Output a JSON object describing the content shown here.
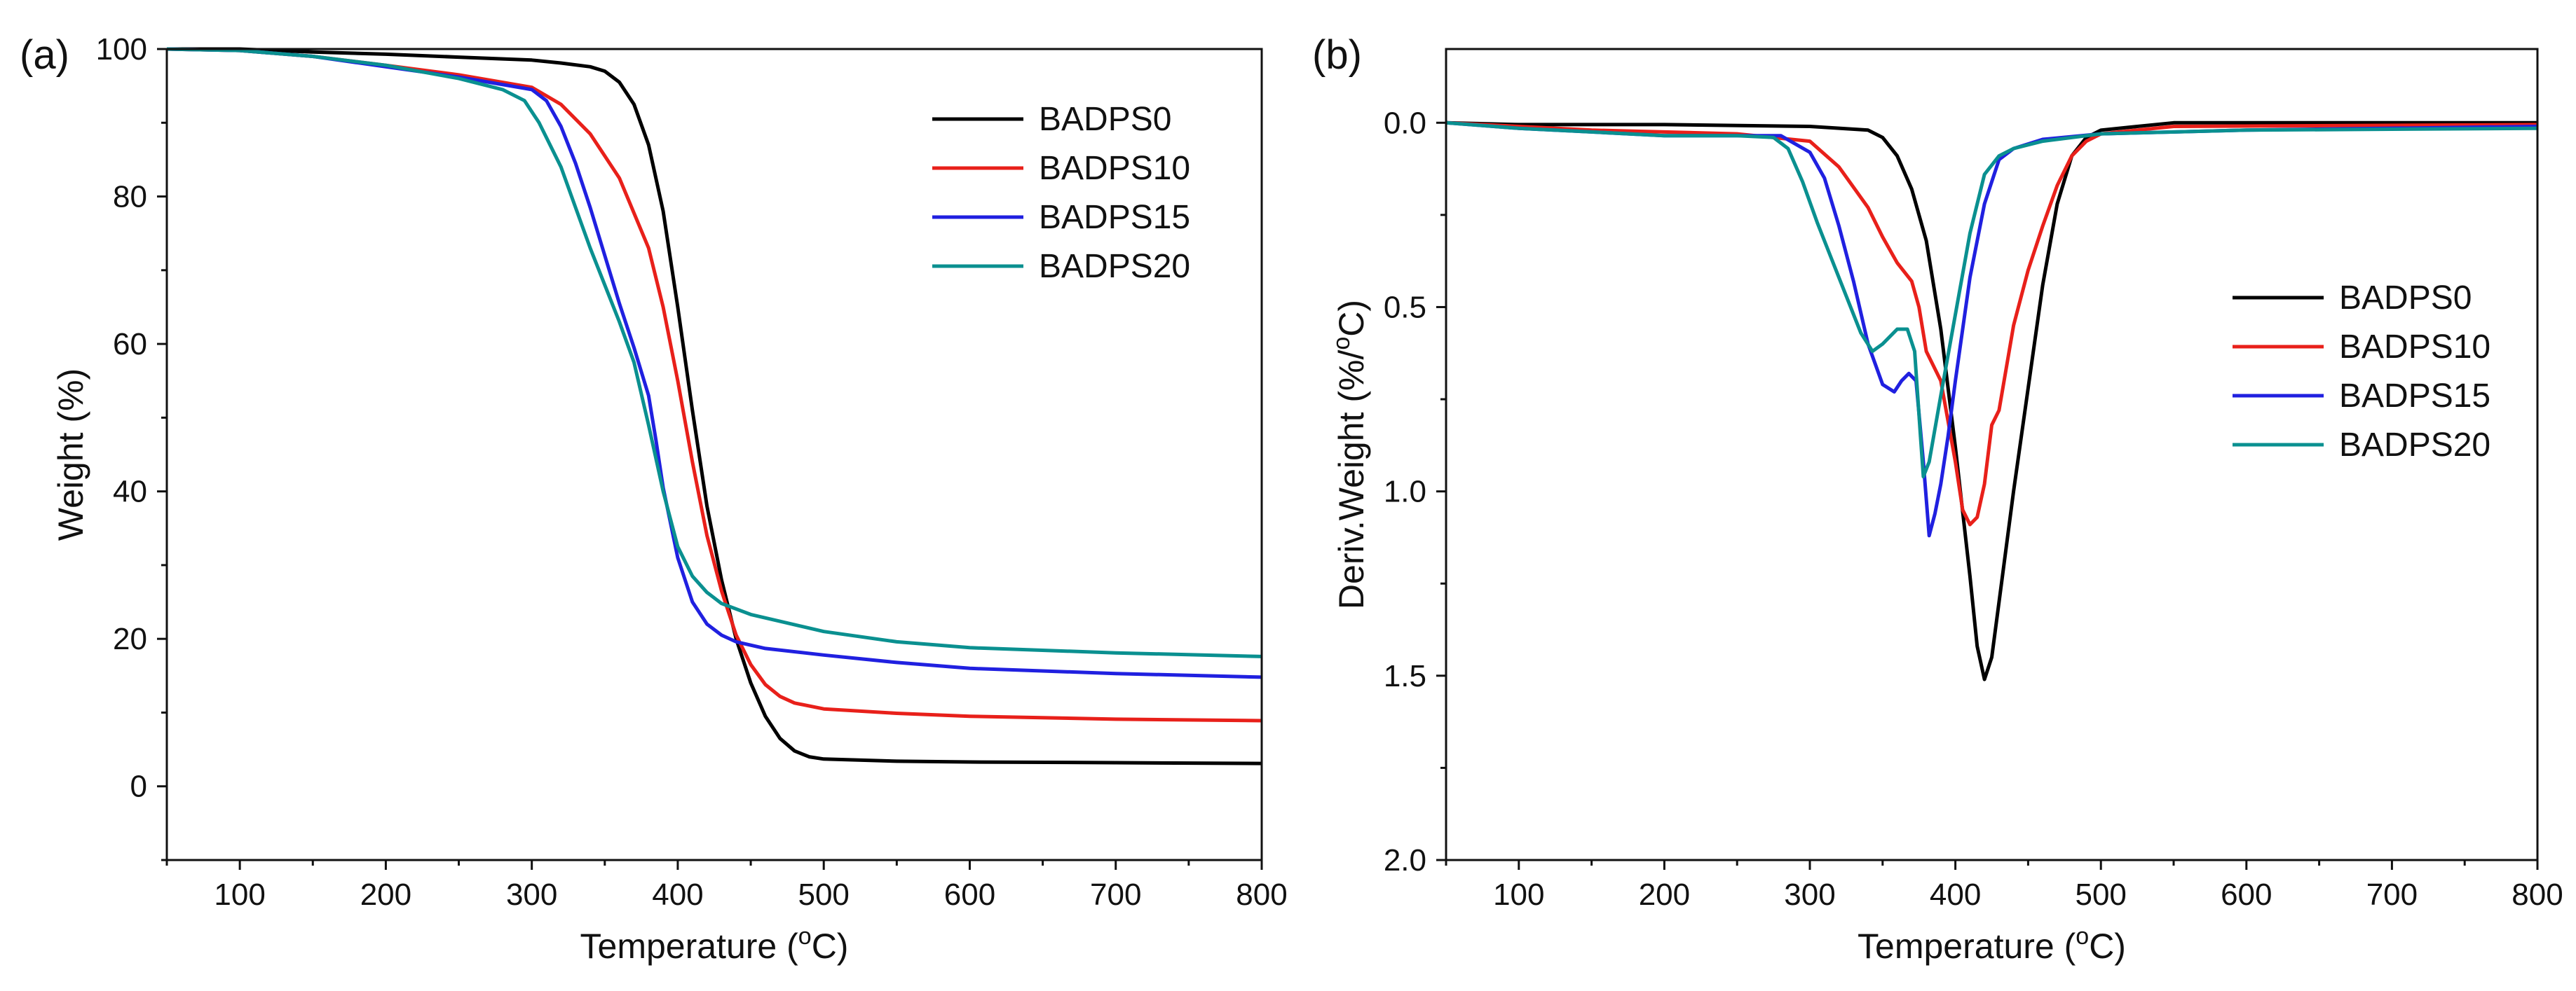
{
  "figure": {
    "panel_labels": [
      "(a)",
      "(b)"
    ]
  },
  "chart_data": [
    {
      "type": "line",
      "title": "",
      "panel": "(a)",
      "xlabel": "Temperature (°C)",
      "xlabel_parts": {
        "pre": "Temperature (",
        "sup": "o",
        "post": "C)"
      },
      "ylabel": "Weight (%)",
      "xlim": [
        50,
        800
      ],
      "ylim": [
        -10,
        100
      ],
      "xticks": [
        100,
        200,
        300,
        400,
        500,
        600,
        700,
        800
      ],
      "yticks": [
        0,
        20,
        40,
        60,
        80,
        100
      ],
      "grid": false,
      "legend_position": "top-right",
      "series": [
        {
          "name": "BADPS0",
          "color": "#000000",
          "points": [
            [
              50,
              100
            ],
            [
              100,
              100
            ],
            [
              150,
              99.6
            ],
            [
              200,
              99.3
            ],
            [
              250,
              98.9
            ],
            [
              300,
              98.5
            ],
            [
              320,
              98.1
            ],
            [
              340,
              97.6
            ],
            [
              350,
              97.0
            ],
            [
              360,
              95.5
            ],
            [
              370,
              92.5
            ],
            [
              380,
              87.0
            ],
            [
              390,
              78.0
            ],
            [
              400,
              65.0
            ],
            [
              410,
              51.0
            ],
            [
              420,
              38.0
            ],
            [
              430,
              28.0
            ],
            [
              440,
              20.0
            ],
            [
              450,
              14.0
            ],
            [
              460,
              9.5
            ],
            [
              470,
              6.5
            ],
            [
              480,
              4.8
            ],
            [
              490,
              4.0
            ],
            [
              500,
              3.7
            ],
            [
              550,
              3.4
            ],
            [
              600,
              3.3
            ],
            [
              700,
              3.2
            ],
            [
              800,
              3.1
            ]
          ]
        },
        {
          "name": "BADPS10",
          "color": "#e8201a",
          "points": [
            [
              50,
              100
            ],
            [
              100,
              99.8
            ],
            [
              150,
              99.0
            ],
            [
              200,
              97.8
            ],
            [
              250,
              96.5
            ],
            [
              300,
              94.8
            ],
            [
              320,
              92.5
            ],
            [
              340,
              88.5
            ],
            [
              360,
              82.5
            ],
            [
              380,
              73.0
            ],
            [
              390,
              65.0
            ],
            [
              400,
              55.0
            ],
            [
              410,
              44.0
            ],
            [
              420,
              34.0
            ],
            [
              430,
              26.5
            ],
            [
              440,
              20.5
            ],
            [
              450,
              16.5
            ],
            [
              460,
              13.8
            ],
            [
              470,
              12.2
            ],
            [
              480,
              11.3
            ],
            [
              500,
              10.5
            ],
            [
              550,
              9.9
            ],
            [
              600,
              9.5
            ],
            [
              700,
              9.1
            ],
            [
              800,
              8.9
            ]
          ]
        },
        {
          "name": "BADPS15",
          "color": "#2020e0",
          "points": [
            [
              50,
              100
            ],
            [
              100,
              99.8
            ],
            [
              150,
              99.0
            ],
            [
              200,
              97.6
            ],
            [
              250,
              96.2
            ],
            [
              300,
              94.5
            ],
            [
              310,
              93.0
            ],
            [
              320,
              89.5
            ],
            [
              330,
              84.5
            ],
            [
              340,
              78.5
            ],
            [
              350,
              72.0
            ],
            [
              360,
              65.5
            ],
            [
              370,
              59.5
            ],
            [
              380,
              53.0
            ],
            [
              385,
              47.0
            ],
            [
              390,
              40.5
            ],
            [
              400,
              31.0
            ],
            [
              410,
              25.0
            ],
            [
              420,
              22.0
            ],
            [
              430,
              20.5
            ],
            [
              440,
              19.6
            ],
            [
              460,
              18.7
            ],
            [
              500,
              17.8
            ],
            [
              550,
              16.8
            ],
            [
              600,
              16.0
            ],
            [
              700,
              15.3
            ],
            [
              800,
              14.8
            ]
          ]
        },
        {
          "name": "BADPS20",
          "color": "#0a9090",
          "points": [
            [
              50,
              100
            ],
            [
              100,
              99.8
            ],
            [
              150,
              99.0
            ],
            [
              200,
              97.8
            ],
            [
              250,
              96.0
            ],
            [
              280,
              94.5
            ],
            [
              295,
              93.0
            ],
            [
              305,
              90.0
            ],
            [
              320,
              84.0
            ],
            [
              330,
              78.5
            ],
            [
              340,
              73.0
            ],
            [
              350,
              68.0
            ],
            [
              360,
              63.0
            ],
            [
              370,
              57.5
            ],
            [
              380,
              49.0
            ],
            [
              390,
              40.0
            ],
            [
              400,
              32.5
            ],
            [
              410,
              28.5
            ],
            [
              420,
              26.3
            ],
            [
              430,
              24.8
            ],
            [
              450,
              23.3
            ],
            [
              500,
              21.0
            ],
            [
              550,
              19.6
            ],
            [
              600,
              18.8
            ],
            [
              700,
              18.1
            ],
            [
              800,
              17.6
            ]
          ]
        }
      ]
    },
    {
      "type": "line",
      "title": "",
      "panel": "(b)",
      "xlabel": "Temperature (°C)",
      "xlabel_parts": {
        "pre": "Temperature (",
        "sup": "o",
        "post": "C)"
      },
      "ylabel": "Deriv.Weight (%/°C)",
      "ylabel_parts": {
        "pre": "Deriv.Weight (%/",
        "sup": "o",
        "post": "C)"
      },
      "xlim": [
        50,
        800
      ],
      "ylim": [
        2.0,
        -0.2
      ],
      "y_inverted": true,
      "xticks": [
        100,
        200,
        300,
        400,
        500,
        600,
        700,
        800
      ],
      "yticks": [
        0.0,
        0.5,
        1.0,
        1.5,
        2.0
      ],
      "ytick_labels": [
        "0.0",
        "0.5",
        "1.0",
        "1.5",
        "2.0"
      ],
      "grid": false,
      "legend_position": "right",
      "series": [
        {
          "name": "BADPS0",
          "color": "#000000",
          "points": [
            [
              50,
              0
            ],
            [
              100,
              0.005
            ],
            [
              200,
              0.005
            ],
            [
              300,
              0.01
            ],
            [
              340,
              0.02
            ],
            [
              350,
              0.04
            ],
            [
              360,
              0.09
            ],
            [
              370,
              0.18
            ],
            [
              380,
              0.32
            ],
            [
              390,
              0.56
            ],
            [
              400,
              0.88
            ],
            [
              410,
              1.23
            ],
            [
              415,
              1.42
            ],
            [
              420,
              1.51
            ],
            [
              425,
              1.45
            ],
            [
              430,
              1.3
            ],
            [
              440,
              1.0
            ],
            [
              450,
              0.72
            ],
            [
              460,
              0.44
            ],
            [
              470,
              0.22
            ],
            [
              480,
              0.09
            ],
            [
              490,
              0.04
            ],
            [
              500,
              0.02
            ],
            [
              550,
              0.0
            ],
            [
              800,
              0.0
            ]
          ]
        },
        {
          "name": "BADPS10",
          "color": "#e8201a",
          "points": [
            [
              50,
              0
            ],
            [
              100,
              0.01
            ],
            [
              150,
              0.02
            ],
            [
              200,
              0.025
            ],
            [
              250,
              0.03
            ],
            [
              300,
              0.05
            ],
            [
              320,
              0.12
            ],
            [
              340,
              0.23
            ],
            [
              350,
              0.31
            ],
            [
              360,
              0.38
            ],
            [
              370,
              0.43
            ],
            [
              375,
              0.5
            ],
            [
              380,
              0.62
            ],
            [
              390,
              0.7
            ],
            [
              400,
              0.92
            ],
            [
              405,
              1.05
            ],
            [
              410,
              1.09
            ],
            [
              415,
              1.07
            ],
            [
              420,
              0.98
            ],
            [
              425,
              0.82
            ],
            [
              430,
              0.78
            ],
            [
              440,
              0.55
            ],
            [
              450,
              0.4
            ],
            [
              460,
              0.28
            ],
            [
              470,
              0.17
            ],
            [
              480,
              0.09
            ],
            [
              490,
              0.05
            ],
            [
              500,
              0.03
            ],
            [
              550,
              0.01
            ],
            [
              800,
              0.005
            ]
          ]
        },
        {
          "name": "BADPS15",
          "color": "#2020e0",
          "points": [
            [
              50,
              0
            ],
            [
              100,
              0.015
            ],
            [
              150,
              0.025
            ],
            [
              200,
              0.035
            ],
            [
              250,
              0.035
            ],
            [
              280,
              0.035
            ],
            [
              300,
              0.08
            ],
            [
              310,
              0.15
            ],
            [
              320,
              0.28
            ],
            [
              330,
              0.43
            ],
            [
              340,
              0.6
            ],
            [
              350,
              0.71
            ],
            [
              358,
              0.73
            ],
            [
              363,
              0.7
            ],
            [
              368,
              0.68
            ],
            [
              373,
              0.7
            ],
            [
              378,
              0.92
            ],
            [
              382,
              1.12
            ],
            [
              386,
              1.06
            ],
            [
              390,
              0.98
            ],
            [
              395,
              0.85
            ],
            [
              400,
              0.7
            ],
            [
              410,
              0.42
            ],
            [
              420,
              0.22
            ],
            [
              430,
              0.1
            ],
            [
              440,
              0.07
            ],
            [
              460,
              0.045
            ],
            [
              500,
              0.03
            ],
            [
              600,
              0.02
            ],
            [
              800,
              0.01
            ]
          ]
        },
        {
          "name": "BADPS20",
          "color": "#0a9090",
          "points": [
            [
              50,
              0
            ],
            [
              100,
              0.015
            ],
            [
              150,
              0.025
            ],
            [
              200,
              0.035
            ],
            [
              250,
              0.035
            ],
            [
              275,
              0.04
            ],
            [
              285,
              0.07
            ],
            [
              295,
              0.16
            ],
            [
              305,
              0.27
            ],
            [
              315,
              0.37
            ],
            [
              325,
              0.47
            ],
            [
              335,
              0.57
            ],
            [
              343,
              0.62
            ],
            [
              350,
              0.6
            ],
            [
              360,
              0.56
            ],
            [
              367,
              0.56
            ],
            [
              372,
              0.62
            ],
            [
              376,
              0.85
            ],
            [
              378,
              0.96
            ],
            [
              382,
              0.92
            ],
            [
              390,
              0.74
            ],
            [
              400,
              0.52
            ],
            [
              410,
              0.3
            ],
            [
              420,
              0.14
            ],
            [
              430,
              0.09
            ],
            [
              440,
              0.07
            ],
            [
              460,
              0.05
            ],
            [
              500,
              0.03
            ],
            [
              600,
              0.02
            ],
            [
              800,
              0.015
            ]
          ]
        }
      ]
    }
  ]
}
